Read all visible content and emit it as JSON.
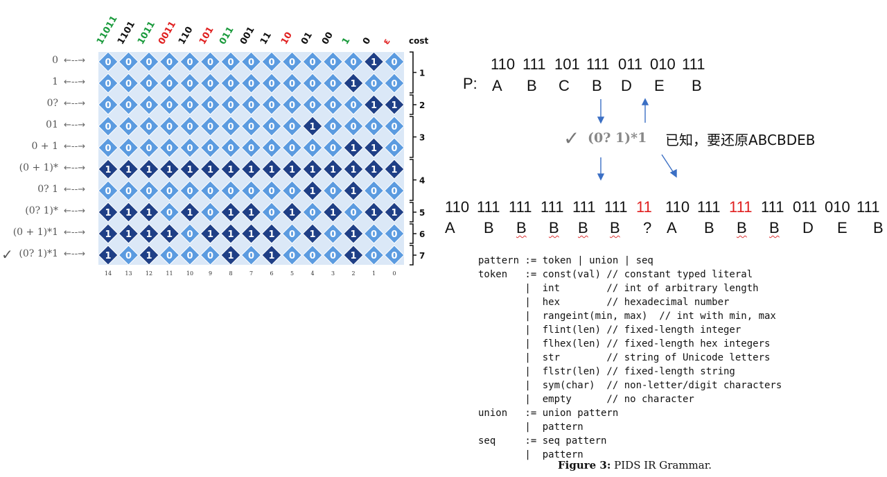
{
  "grid": {
    "header_cols": [
      {
        "text": "11011",
        "color": "#1a9a3c"
      },
      {
        "text": "1101",
        "color": "#111111"
      },
      {
        "text": "1011",
        "color": "#1a9a3c"
      },
      {
        "text": "0011",
        "color": "#e02020"
      },
      {
        "text": "110",
        "color": "#111111"
      },
      {
        "text": "101",
        "color": "#e02020"
      },
      {
        "text": "011",
        "color": "#1a9a3c"
      },
      {
        "text": "001",
        "color": "#111111"
      },
      {
        "text": "11",
        "color": "#111111"
      },
      {
        "text": "10",
        "color": "#e02020"
      },
      {
        "text": "01",
        "color": "#111111"
      },
      {
        "text": "00",
        "color": "#111111"
      },
      {
        "text": "1",
        "color": "#1a9a3c"
      },
      {
        "text": "0",
        "color": "#111111"
      },
      {
        "text": "ε",
        "color": "#e02020"
      }
    ],
    "cost_label": "cost",
    "rows": [
      {
        "label": "0",
        "check": "",
        "bits": "000000000000010"
      },
      {
        "label": "1",
        "check": "",
        "bits": "000000000000100"
      },
      {
        "label": "0?",
        "check": "",
        "bits": "000000000000011"
      },
      {
        "label": "01",
        "check": "",
        "bits": "000000000010000"
      },
      {
        "label": "0 + 1",
        "check": "",
        "bits": "000000000000110"
      },
      {
        "label": "(0 + 1)*",
        "check": "",
        "bits": "111111111111111"
      },
      {
        "label": "0? 1",
        "check": "",
        "bits": "000000000010100"
      },
      {
        "label": "(0? 1)*",
        "check": "",
        "bits": "111010110101011"
      },
      {
        "label": "(0 + 1)*1",
        "check": "",
        "bits": "111101111010100"
      },
      {
        "label": "(0? 1)*1",
        "check": "✓",
        "bits": "101000101000100"
      }
    ],
    "arrow": "←--→",
    "col_numbers": [
      "14",
      "13",
      "12",
      "11",
      "10",
      "9",
      "8",
      "7",
      "6",
      "5",
      "4",
      "3",
      "2",
      "1",
      "0"
    ],
    "costs": [
      "1",
      "2",
      "3",
      "4",
      "5",
      "6",
      "7"
    ],
    "colors": {
      "zero": "#5b9be0",
      "one": "#1f3f86",
      "light_bg": "#dbe8f7"
    }
  },
  "right": {
    "p_label": "P:",
    "p_codes": [
      "110",
      "111",
      "101",
      "111",
      "011",
      "010",
      "111"
    ],
    "p_letters": [
      "A",
      "B",
      "C",
      "B",
      "D",
      "E",
      "B"
    ],
    "regex_check": "✓",
    "regex": "(0? 1)*1",
    "note": "已知，要还原ABCBDEB",
    "seq1_codes": [
      "110",
      "111",
      "111",
      "111",
      "111",
      "111",
      "11"
    ],
    "seq1_letters": [
      "A",
      "B",
      "B",
      "B",
      "B",
      "B",
      "?"
    ],
    "seq2_codes": [
      "110",
      "111",
      "111",
      "111",
      "011",
      "010",
      "111"
    ],
    "seq2_letters": [
      "A",
      "B",
      "B",
      "B",
      "D",
      "E",
      "B"
    ]
  },
  "grammar": {
    "lines": [
      "pattern := token | union | seq",
      "token   := const(val) // constant typed literal",
      "        |  int        // int of arbitrary length",
      "        |  hex        // hexadecimal number",
      "        |  rangeint(min, max)  // int with min, max",
      "        |  flint(len) // fixed-length integer",
      "        |  flhex(len) // fixed-length hex integers",
      "        |  str        // string of Unicode letters",
      "        |  flstr(len) // fixed-length string",
      "        |  sym(char)  // non-letter/digit characters",
      "        |  empty      // no character",
      "union   := union pattern",
      "        |  pattern",
      "seq     := seq pattern",
      "        |  pattern"
    ],
    "caption_bold": "Figure 3:",
    "caption_rest": " PIDS IR Grammar."
  }
}
